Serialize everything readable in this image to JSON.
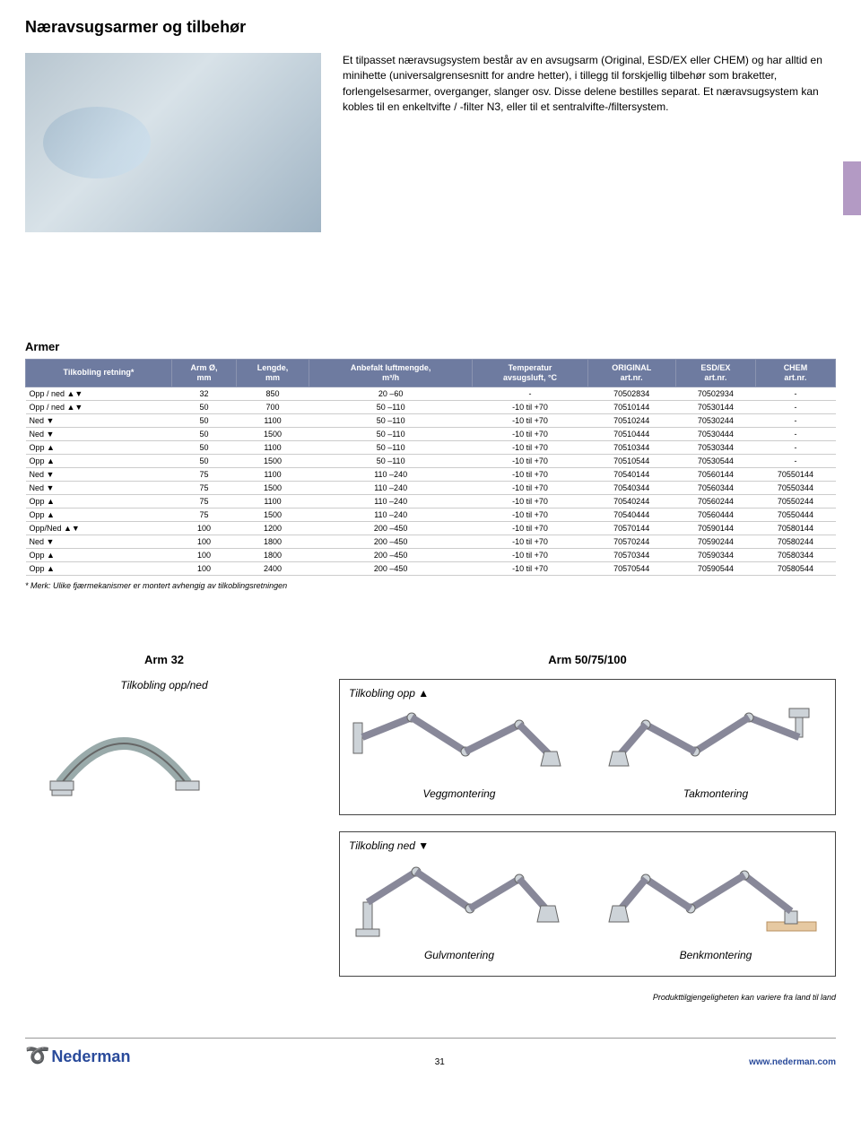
{
  "title": "Næravsugsarmer og tilbehør",
  "intro": "Et tilpasset næravsugsystem består av en avsugsarm (Original, ESD/EX eller CHEM) og har alltid en minihette (universalgrensesnitt for andre hetter), i tillegg til forskjellig tilbehør som braketter, forlengelsesarmer, overganger, slanger osv. Disse delene bestilles separat. Et næravsugsystem kan kobles til en enkeltvifte / -filter N3, eller til et sentralvifte-/filtersystem.",
  "armer_heading": "Armer",
  "table": {
    "columns": [
      "Tilkobling retning*",
      "Arm Ø,\nmm",
      "Lengde,\nmm",
      "Anbefalt luftmengde,\nm³/h",
      "Temperatur\navsugsluft, °C",
      "ORIGINAL\nart.nr.",
      "ESD/EX\nart.nr.",
      "CHEM\nart.nr."
    ],
    "rows": [
      [
        "Opp / ned ▲▼",
        "32",
        "850",
        "20 –60",
        "-",
        "70502834",
        "70502934",
        "-"
      ],
      [
        "Opp / ned ▲▼",
        "50",
        "700",
        "50 –110",
        "-10 til +70",
        "70510144",
        "70530144",
        "-"
      ],
      [
        "Ned ▼",
        "50",
        "1100",
        "50 –110",
        "-10 til +70",
        "70510244",
        "70530244",
        "-"
      ],
      [
        "Ned ▼",
        "50",
        "1500",
        "50 –110",
        "-10 til +70",
        "70510444",
        "70530444",
        "-"
      ],
      [
        "Opp ▲",
        "50",
        "1100",
        "50 –110",
        "-10 til +70",
        "70510344",
        "70530344",
        "-"
      ],
      [
        "Opp ▲",
        "50",
        "1500",
        "50 –110",
        "-10 til +70",
        "70510544",
        "70530544",
        "-"
      ],
      [
        "Ned ▼",
        "75",
        "1100",
        "110 –240",
        "-10 til +70",
        "70540144",
        "70560144",
        "70550144"
      ],
      [
        "Ned ▼",
        "75",
        "1500",
        "110 –240",
        "-10 til +70",
        "70540344",
        "70560344",
        "70550344"
      ],
      [
        "Opp ▲",
        "75",
        "1100",
        "110 –240",
        "-10 til +70",
        "70540244",
        "70560244",
        "70550244"
      ],
      [
        "Opp ▲",
        "75",
        "1500",
        "110 –240",
        "-10 til +70",
        "70540444",
        "70560444",
        "70550444"
      ],
      [
        "Opp/Ned ▲▼",
        "100",
        "1200",
        "200 –450",
        "-10 til +70",
        "70570144",
        "70590144",
        "70580144"
      ],
      [
        "Ned ▼",
        "100",
        "1800",
        "200 –450",
        "-10 til +70",
        "70570244",
        "70590244",
        "70580244"
      ],
      [
        "Opp ▲",
        "100",
        "1800",
        "200 –450",
        "-10 til +70",
        "70570344",
        "70590344",
        "70580344"
      ],
      [
        "Opp ▲",
        "100",
        "2400",
        "200 –450",
        "-10 til +70",
        "70570544",
        "70590544",
        "70580544"
      ]
    ],
    "header_bg": "#6e7ba0",
    "header_fg": "#ffffff"
  },
  "note": "* Merk: Ulike fjærmekanismer er montert avhengig av tilkoblingsretningen",
  "diagrams": {
    "left_title": "Arm 32",
    "right_title": "Arm 50/75/100",
    "tilk_oppned": "Tilkobling opp/ned",
    "tilk_opp": "Tilkobling opp ▲",
    "tilk_ned": "Tilkobling ned ▼",
    "vegg": "Veggmontering",
    "tak": "Takmontering",
    "gulv": "Gulvmontering",
    "benk": "Benkmontering"
  },
  "footer": {
    "availability": "Produkttilgjengeligheten kan variere fra land til land",
    "brand": "Nederman",
    "page": "31",
    "url": "www.nederman.com"
  }
}
